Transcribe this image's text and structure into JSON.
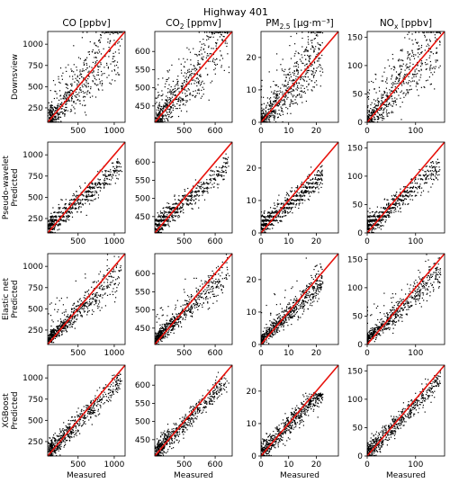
{
  "figure": {
    "title": "Highway 401",
    "columns": [
      {
        "pre": "CO [ppbv]",
        "sub": "",
        "post": ""
      },
      {
        "pre": "CO",
        "sub": "2",
        "post": " [ppmv]"
      },
      {
        "pre": "PM",
        "sub": "2.5",
        "post": " [μg·m⁻³]"
      },
      {
        "pre": "NO",
        "sub": "x",
        "post": " [ppbv]"
      }
    ],
    "rows": [
      {
        "line1": "",
        "line2": "Downsview"
      },
      {
        "line1": "Pseudo-wavelet",
        "line2": "Predicted"
      },
      {
        "line1": "Elastic net",
        "line2": "Predicted"
      },
      {
        "line1": "XGBoost",
        "line2": "Predicted"
      }
    ],
    "xlabel": "Measured",
    "colors": {
      "points": "#000000",
      "identity_line": "#e8120c"
    }
  },
  "chart_data": [
    {
      "type": "scatter",
      "row": "Downsview",
      "column": "CO [ppbv]",
      "xlim": [
        80,
        1150
      ],
      "ylim": [
        80,
        1150
      ],
      "xticks": [
        500,
        1000
      ],
      "yticks": [
        250,
        500,
        750,
        1000
      ],
      "identity_line": true
    },
    {
      "type": "scatter",
      "row": "Downsview",
      "column": "CO2 [ppmv]",
      "xlim": [
        405,
        655
      ],
      "ylim": [
        405,
        655
      ],
      "xticks": [
        500,
        600
      ],
      "yticks": [
        450,
        500,
        550,
        600
      ],
      "identity_line": true
    },
    {
      "type": "scatter",
      "row": "Downsview",
      "column": "PM2.5 [μg·m⁻³]",
      "xlim": [
        0,
        28
      ],
      "ylim": [
        0,
        28
      ],
      "xticks": [
        0,
        10,
        20
      ],
      "yticks": [
        0,
        10,
        20
      ],
      "identity_line": true
    },
    {
      "type": "scatter",
      "row": "Downsview",
      "column": "NOx [ppbv]",
      "xlim": [
        0,
        160
      ],
      "ylim": [
        0,
        160
      ],
      "xticks": [
        0,
        100
      ],
      "yticks": [
        0,
        50,
        100,
        150
      ],
      "identity_line": true
    },
    {
      "type": "scatter",
      "row": "Pseudo-wavelet Predicted",
      "column": "CO [ppbv]",
      "xlim": [
        80,
        1150
      ],
      "ylim": [
        80,
        1150
      ],
      "xticks": [
        500,
        1000
      ],
      "yticks": [
        250,
        500,
        750,
        1000
      ],
      "identity_line": true
    },
    {
      "type": "scatter",
      "row": "Pseudo-wavelet Predicted",
      "column": "CO2 [ppmv]",
      "xlim": [
        405,
        655
      ],
      "ylim": [
        405,
        655
      ],
      "xticks": [
        500,
        600
      ],
      "yticks": [
        450,
        500,
        550,
        600
      ],
      "identity_line": true
    },
    {
      "type": "scatter",
      "row": "Pseudo-wavelet Predicted",
      "column": "PM2.5 [μg·m⁻³]",
      "xlim": [
        0,
        28
      ],
      "ylim": [
        0,
        28
      ],
      "xticks": [
        0,
        10,
        20
      ],
      "yticks": [
        0,
        10,
        20
      ],
      "identity_line": true
    },
    {
      "type": "scatter",
      "row": "Pseudo-wavelet Predicted",
      "column": "NOx [ppbv]",
      "xlim": [
        0,
        160
      ],
      "ylim": [
        0,
        160
      ],
      "xticks": [
        0,
        100
      ],
      "yticks": [
        0,
        50,
        100,
        150
      ],
      "identity_line": true
    },
    {
      "type": "scatter",
      "row": "Elastic net Predicted",
      "column": "CO [ppbv]",
      "xlim": [
        80,
        1150
      ],
      "ylim": [
        80,
        1150
      ],
      "xticks": [
        500,
        1000
      ],
      "yticks": [
        250,
        500,
        750,
        1000
      ],
      "identity_line": true
    },
    {
      "type": "scatter",
      "row": "Elastic net Predicted",
      "column": "CO2 [ppmv]",
      "xlim": [
        405,
        655
      ],
      "ylim": [
        405,
        655
      ],
      "xticks": [
        500,
        600
      ],
      "yticks": [
        450,
        500,
        550,
        600
      ],
      "identity_line": true
    },
    {
      "type": "scatter",
      "row": "Elastic net Predicted",
      "column": "PM2.5 [μg·m⁻³]",
      "xlim": [
        0,
        28
      ],
      "ylim": [
        0,
        28
      ],
      "xticks": [
        0,
        10,
        20
      ],
      "yticks": [
        0,
        10,
        20
      ],
      "identity_line": true
    },
    {
      "type": "scatter",
      "row": "Elastic net Predicted",
      "column": "NOx [ppbv]",
      "xlim": [
        0,
        160
      ],
      "ylim": [
        0,
        160
      ],
      "xticks": [
        0,
        100
      ],
      "yticks": [
        0,
        50,
        100,
        150
      ],
      "identity_line": true
    },
    {
      "type": "scatter",
      "row": "XGBoost Predicted",
      "column": "CO [ppbv]",
      "xlim": [
        80,
        1150
      ],
      "ylim": [
        80,
        1150
      ],
      "xticks": [
        500,
        1000
      ],
      "yticks": [
        250,
        500,
        750,
        1000
      ],
      "identity_line": true
    },
    {
      "type": "scatter",
      "row": "XGBoost Predicted",
      "column": "CO2 [ppmv]",
      "xlim": [
        405,
        655
      ],
      "ylim": [
        405,
        655
      ],
      "xticks": [
        500,
        600
      ],
      "yticks": [
        450,
        500,
        550,
        600
      ],
      "identity_line": true
    },
    {
      "type": "scatter",
      "row": "XGBoost Predicted",
      "column": "PM2.5 [μg·m⁻³]",
      "xlim": [
        0,
        28
      ],
      "ylim": [
        0,
        28
      ],
      "xticks": [
        0,
        10,
        20
      ],
      "yticks": [
        0,
        10,
        20
      ],
      "identity_line": true
    },
    {
      "type": "scatter",
      "row": "XGBoost Predicted",
      "column": "NOx [ppbv]",
      "xlim": [
        0,
        160
      ],
      "ylim": [
        0,
        160
      ],
      "xticks": [
        0,
        100
      ],
      "yticks": [
        0,
        50,
        100,
        150
      ],
      "identity_line": true
    }
  ]
}
